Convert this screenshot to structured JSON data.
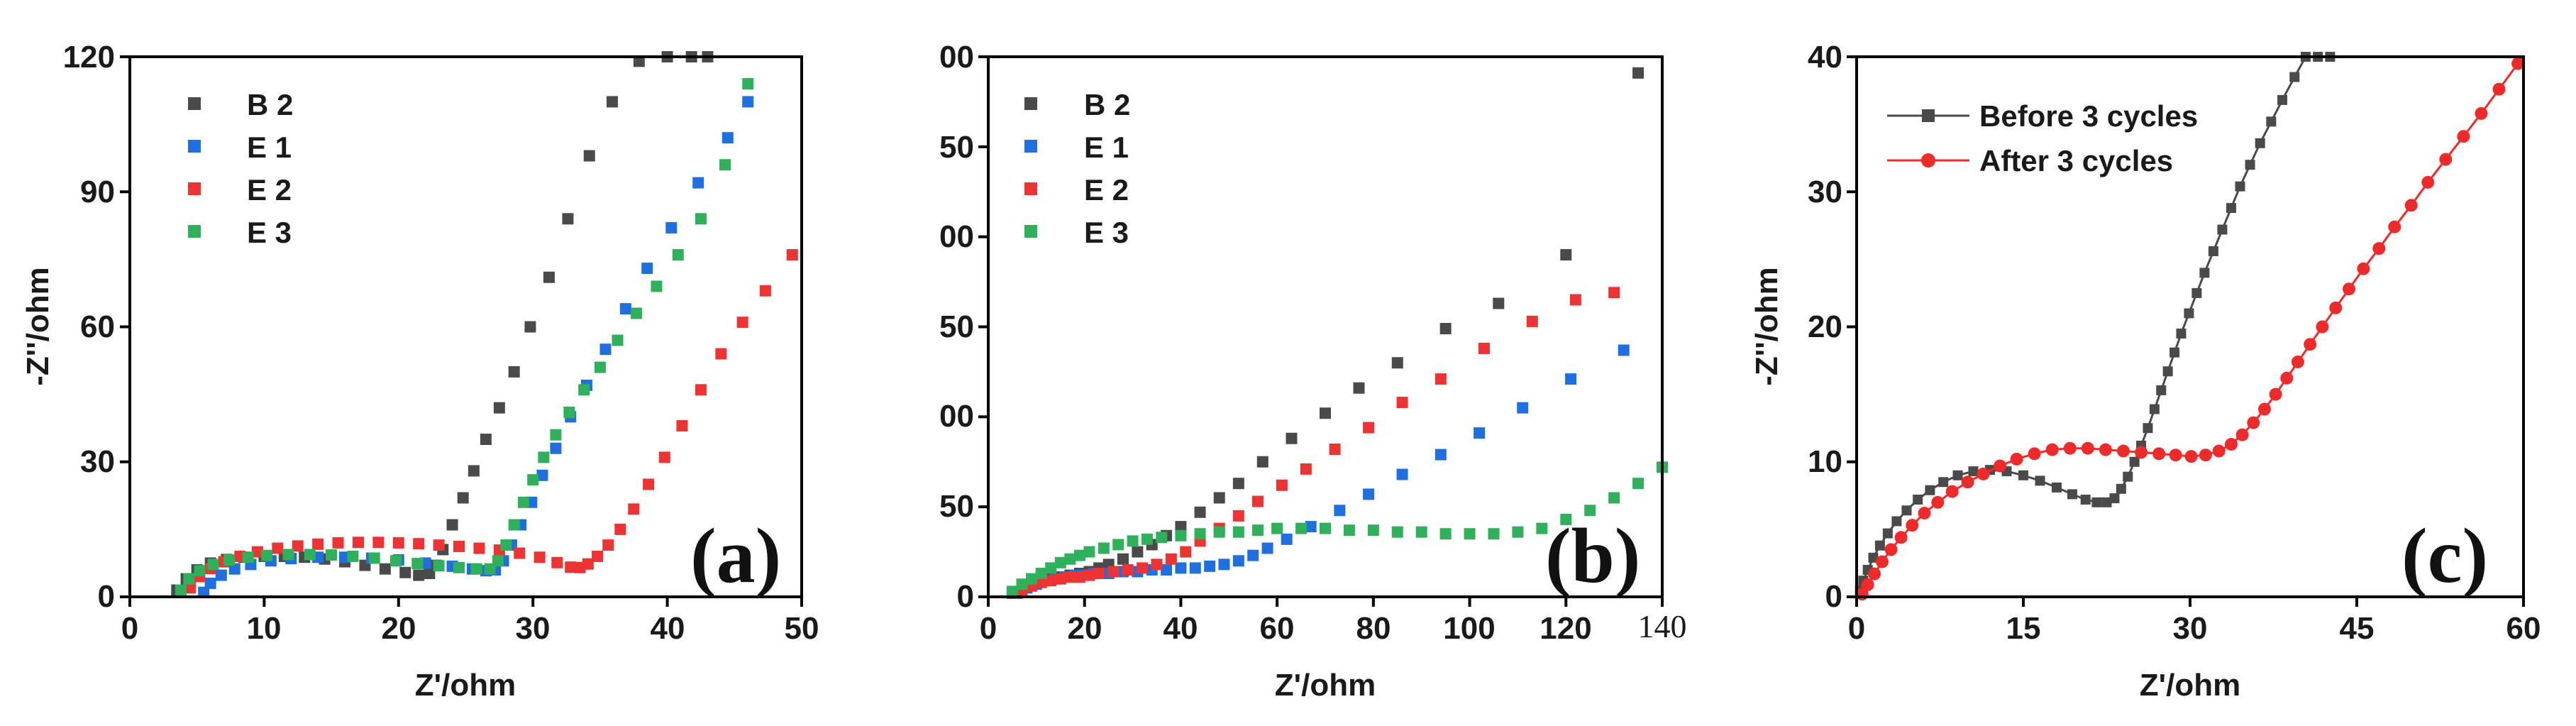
{
  "colors": {
    "B 2": "#4a4a4a",
    "E 1": "#1f6fe0",
    "E 2": "#ee3333",
    "E 3": "#2fb05a",
    "Before 3 cycles": "#4a4a4a",
    "After 3 cycles": "#ee2a2a"
  },
  "chart_data": [
    {
      "type": "scatter",
      "panel_label": "(a)",
      "xlabel": "Z'/ohm",
      "ylabel": "-Z''/ohm",
      "xlim": [
        0,
        50
      ],
      "ylim": [
        0,
        120
      ],
      "xticks": [
        "0",
        "10",
        "20",
        "30",
        "40",
        "50"
      ],
      "yticks": [
        "0",
        "30",
        "60",
        "90",
        "120"
      ],
      "legend": [
        "B 2",
        "E 1",
        "E 2",
        "E 3"
      ],
      "series": [
        {
          "name": "B 2",
          "x": [
            3.5,
            4.2,
            5.0,
            6.0,
            7.2,
            8.5,
            10,
            11.5,
            13,
            14.5,
            16,
            17.5,
            19,
            20.5,
            21.5,
            22.3,
            22.8,
            23.3,
            24.0,
            24.8,
            25.6,
            26.5,
            27.5,
            28.6,
            29.8,
            31.2,
            32.6,
            34.2,
            35.9,
            37.9,
            40.0,
            41.8,
            43.0
          ],
          "y": [
            1.5,
            4.0,
            6.0,
            7.5,
            8.3,
            8.8,
            9.0,
            9.0,
            8.8,
            8.4,
            7.8,
            7.0,
            6.2,
            5.4,
            4.8,
            5.2,
            7.0,
            10.5,
            16,
            22,
            28,
            35,
            42,
            50,
            60,
            71,
            84,
            98,
            110,
            119,
            120,
            120,
            120
          ]
        },
        {
          "name": "E 1",
          "x": [
            5.5,
            6.0,
            6.8,
            7.8,
            9.0,
            10.5,
            12,
            14,
            16,
            18,
            20,
            22,
            24,
            25.5,
            26.5,
            27.2,
            27.8,
            28.4,
            29.1,
            29.9,
            30.7,
            31.7,
            32.8,
            34.0,
            35.4,
            36.9,
            38.5,
            40.3,
            42.3,
            44.5,
            46.0
          ],
          "y": [
            1.0,
            3.0,
            4.8,
            6.2,
            7.2,
            8.0,
            8.5,
            8.8,
            8.8,
            8.6,
            8.2,
            7.5,
            6.8,
            6.2,
            5.8,
            6.0,
            8.0,
            11.5,
            16,
            21,
            27,
            33,
            40,
            47,
            55,
            64,
            73,
            82,
            92,
            102,
            110
          ]
        },
        {
          "name": "E 2",
          "x": [
            4.5,
            5.2,
            6.0,
            7.0,
            8.2,
            9.5,
            11,
            12.5,
            14,
            15.5,
            17,
            18.5,
            20,
            21.5,
            23,
            24.5,
            26,
            27.5,
            29,
            30.5,
            31.8,
            32.8,
            33.5,
            34.1,
            34.8,
            35.6,
            36.5,
            37.5,
            38.6,
            39.8,
            41.1,
            42.5,
            44.0,
            45.6,
            47.3,
            49.3
          ],
          "y": [
            2.0,
            4.5,
            6.3,
            7.8,
            9.0,
            10.0,
            10.8,
            11.3,
            11.7,
            12.0,
            12.1,
            12.1,
            12.0,
            11.8,
            11.5,
            11.2,
            10.8,
            10.4,
            9.7,
            8.8,
            7.6,
            6.6,
            6.5,
            7.3,
            9.0,
            11.5,
            15,
            19.5,
            25,
            31,
            38,
            46,
            54,
            61,
            68,
            76
          ]
        },
        {
          "name": "E 3",
          "x": [
            3.8,
            4.4,
            5.2,
            6.2,
            7.4,
            8.8,
            10.2,
            11.8,
            13.4,
            15,
            16.6,
            18.2,
            19.8,
            21.4,
            23,
            24.5,
            25.8,
            26.8,
            27.4,
            28.0,
            28.6,
            29.3,
            30.0,
            30.8,
            31.7,
            32.7,
            33.8,
            35.0,
            36.3,
            37.7,
            39.2,
            40.8,
            42.5,
            44.3,
            46.0
          ],
          "y": [
            1.5,
            4.0,
            5.8,
            7.2,
            8.2,
            8.8,
            9.2,
            9.4,
            9.4,
            9.3,
            9.0,
            8.6,
            8.0,
            7.4,
            6.9,
            6.5,
            6.2,
            6.2,
            8.0,
            11.5,
            16,
            21,
            26,
            31,
            36,
            41,
            46,
            51,
            57,
            63,
            69,
            76,
            84,
            96,
            114
          ]
        }
      ]
    },
    {
      "type": "scatter",
      "panel_label": "(b)",
      "xlabel": "Z'/ohm",
      "ylabel": "",
      "xlim": [
        0,
        140
      ],
      "ylim": [
        0,
        300
      ],
      "xticks": [
        "0",
        "20",
        "40",
        "60",
        "80",
        "100",
        "120",
        "140"
      ],
      "yticks": [
        "0",
        "50",
        "00",
        "50",
        "00",
        "50",
        "00"
      ],
      "legend": [
        "B 2",
        "E 1",
        "E 2",
        "E 3"
      ],
      "series": [
        {
          "name": "B 2",
          "x": [
            5,
            7,
            9,
            11,
            13,
            15,
            17,
            19,
            21,
            23,
            25,
            28,
            31,
            34,
            37,
            40,
            44,
            48,
            52,
            57,
            63,
            70,
            77,
            85,
            95,
            106,
            120,
            135
          ],
          "y": [
            2,
            5,
            7,
            9,
            10,
            11,
            12,
            13,
            14,
            16,
            18,
            21,
            25,
            29,
            34,
            39,
            47,
            55,
            63,
            75,
            88,
            102,
            116,
            130,
            149,
            163,
            190,
            291
          ]
        },
        {
          "name": "E 1",
          "x": [
            6,
            8,
            10,
            12,
            14,
            16,
            18,
            20,
            22,
            25,
            28,
            31,
            34,
            37,
            40,
            43,
            46,
            49,
            52,
            55,
            58,
            62,
            67,
            73,
            79,
            86,
            94,
            102,
            111,
            121,
            132
          ],
          "y": [
            2,
            5,
            7,
            9,
            10,
            11,
            12,
            12,
            13,
            13,
            14,
            14,
            15,
            15,
            16,
            16,
            17,
            18,
            20,
            23,
            27,
            32,
            39,
            48,
            57,
            68,
            79,
            91,
            105,
            121,
            137
          ]
        },
        {
          "name": "E 2",
          "x": [
            5,
            7,
            9,
            11,
            13,
            15,
            17,
            19,
            21,
            23,
            26,
            29,
            32,
            35,
            38,
            41,
            44,
            48,
            52,
            56,
            61,
            66,
            72,
            79,
            86,
            94,
            103,
            113,
            122,
            130
          ],
          "y": [
            2,
            4,
            6,
            8,
            9,
            10,
            11,
            11,
            12,
            13,
            14,
            15,
            16,
            18,
            21,
            25,
            31,
            38,
            45,
            53,
            62,
            71,
            82,
            94,
            108,
            121,
            138,
            153,
            165,
            169
          ]
        },
        {
          "name": "E 3",
          "x": [
            5,
            7,
            9,
            11,
            13,
            15,
            17,
            19,
            21,
            24,
            27,
            30,
            33,
            36,
            40,
            44,
            48,
            52,
            56,
            60,
            65,
            70,
            75,
            80,
            85,
            90,
            95,
            100,
            105,
            110,
            115,
            120,
            125,
            130,
            135,
            140
          ],
          "y": [
            3,
            7,
            10,
            13,
            16,
            19,
            21,
            23,
            25,
            27,
            29,
            31,
            32,
            33,
            34,
            35,
            36,
            36,
            37,
            38,
            38,
            38,
            37,
            37,
            36,
            36,
            35,
            35,
            35,
            36,
            38,
            43,
            48,
            55,
            63,
            72
          ]
        }
      ]
    },
    {
      "type": "line",
      "panel_label": "(c)",
      "xlabel": "Z'/ohm",
      "ylabel": "-Z''/ohm",
      "xlim": [
        0,
        60
      ],
      "ylim": [
        0,
        40
      ],
      "xticks": [
        "0",
        "15",
        "30",
        "45",
        "60"
      ],
      "yticks": [
        "0",
        "10",
        "20",
        "30",
        "40"
      ],
      "legend": [
        "Before 3 cycles",
        "After 3 cycles"
      ],
      "series": [
        {
          "name": "Before 3 cycles",
          "x": [
            0.3,
            0.6,
            1.0,
            1.5,
            2.1,
            2.8,
            3.6,
            4.5,
            5.5,
            6.6,
            7.8,
            9.1,
            10.5,
            12.0,
            13.5,
            15.0,
            16.5,
            18.0,
            19.4,
            20.6,
            21.6,
            22.5,
            23.2,
            23.8,
            24.4,
            25.0,
            25.6,
            26.2,
            26.8,
            27.4,
            28.0,
            28.6,
            29.2,
            29.9,
            30.6,
            31.3,
            32.1,
            32.9,
            33.7,
            34.5,
            35.4,
            36.3,
            37.3,
            38.3,
            39.4,
            40.4,
            41.5,
            42.6
          ],
          "y": [
            0.5,
            1.2,
            2.0,
            2.9,
            3.8,
            4.7,
            5.6,
            6.4,
            7.2,
            7.9,
            8.5,
            9.0,
            9.3,
            9.4,
            9.3,
            9.0,
            8.6,
            8.1,
            7.6,
            7.2,
            7.0,
            7.0,
            7.3,
            8.0,
            8.9,
            10.0,
            11.2,
            12.5,
            13.9,
            15.3,
            16.7,
            18.1,
            19.5,
            21.0,
            22.5,
            24.0,
            25.6,
            27.2,
            28.8,
            30.4,
            32.0,
            33.6,
            35.2,
            36.8,
            38.5,
            40.0,
            40.0,
            40.0
          ]
        },
        {
          "name": "After 3 cycles",
          "x": [
            0.5,
            1.0,
            1.6,
            2.3,
            3.1,
            4.0,
            5.0,
            6.1,
            7.3,
            8.6,
            10.0,
            11.4,
            12.9,
            14.4,
            16.0,
            17.6,
            19.2,
            20.8,
            22.4,
            24.0,
            25.6,
            27.2,
            28.7,
            30.1,
            31.4,
            32.6,
            33.7,
            34.7,
            35.7,
            36.7,
            37.7,
            38.7,
            39.7,
            40.8,
            41.9,
            43.1,
            44.3,
            45.6,
            47.0,
            48.4,
            49.9,
            51.4,
            53.0,
            54.6,
            56.2,
            57.8,
            59.5
          ],
          "y": [
            0.2,
            0.9,
            1.7,
            2.6,
            3.5,
            4.4,
            5.3,
            6.2,
            7.0,
            7.8,
            8.5,
            9.1,
            9.7,
            10.2,
            10.6,
            10.9,
            11.0,
            11.0,
            10.9,
            10.8,
            10.7,
            10.6,
            10.5,
            10.4,
            10.5,
            10.8,
            11.3,
            12.0,
            12.9,
            13.9,
            15.0,
            16.2,
            17.4,
            18.7,
            20.0,
            21.4,
            22.8,
            24.3,
            25.8,
            27.4,
            29.0,
            30.7,
            32.4,
            34.1,
            35.8,
            37.6,
            39.5
          ]
        }
      ]
    }
  ]
}
